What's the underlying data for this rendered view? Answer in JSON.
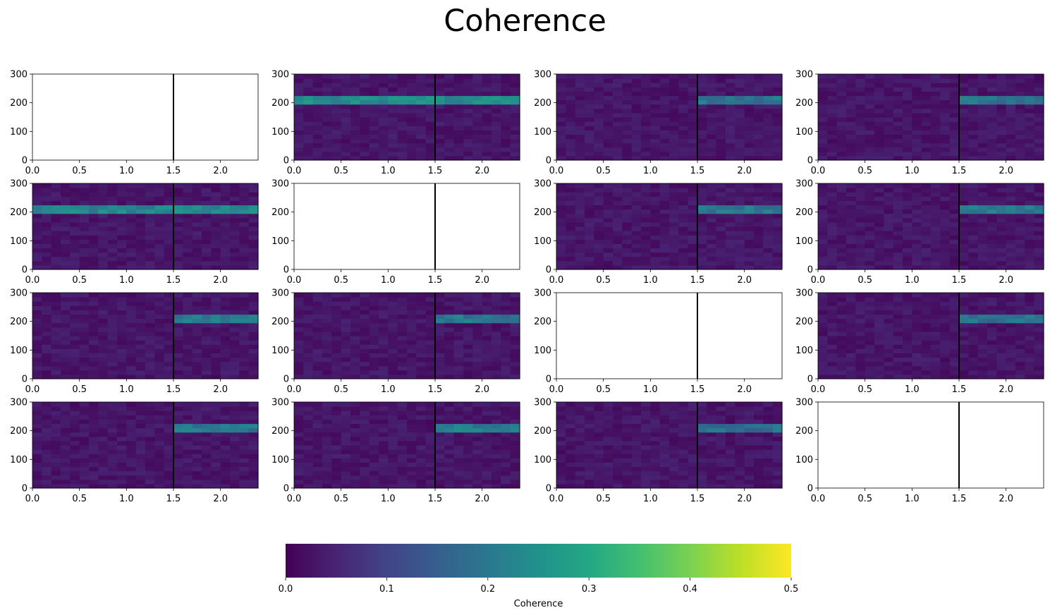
{
  "chart_data": {
    "type": "heatmap",
    "title": "Coherence",
    "grid": {
      "rows": 4,
      "cols": 4
    },
    "xlim": [
      0,
      2.4
    ],
    "ylim": [
      0,
      300
    ],
    "xticks": [
      "0.0",
      "0.5",
      "1.0",
      "1.5",
      "2.0"
    ],
    "yticks": [
      "0",
      "100",
      "200",
      "300"
    ],
    "event_marker_x": 1.5,
    "band_y_range": [
      190,
      225
    ],
    "colorbar": {
      "label": "Coherence",
      "range": [
        0,
        0.5
      ],
      "ticks": [
        "0.0",
        "0.1",
        "0.2",
        "0.3",
        "0.4",
        "0.5"
      ],
      "colormap": "viridis"
    },
    "panels": [
      {
        "empty": true
      },
      {
        "band_start_x": 0.0,
        "band_level": 0.24
      },
      {
        "band_start_x": 1.5,
        "band_level": 0.2
      },
      {
        "band_start_x": 1.5,
        "band_level": 0.19
      },
      {
        "band_start_x": 0.0,
        "band_level": 0.23
      },
      {
        "empty": true
      },
      {
        "band_start_x": 1.5,
        "band_level": 0.2
      },
      {
        "band_start_x": 1.5,
        "band_level": 0.21
      },
      {
        "band_start_x": 1.5,
        "band_level": 0.2
      },
      {
        "band_start_x": 1.5,
        "band_level": 0.2
      },
      {
        "empty": true
      },
      {
        "band_start_x": 1.5,
        "band_level": 0.19
      },
      {
        "band_start_x": 1.5,
        "band_level": 0.2
      },
      {
        "band_start_x": 1.5,
        "band_level": 0.21
      },
      {
        "band_start_x": 1.5,
        "band_level": 0.18
      },
      {
        "empty": true
      }
    ]
  }
}
